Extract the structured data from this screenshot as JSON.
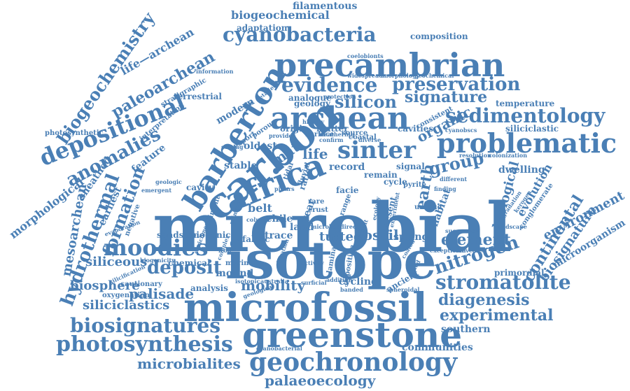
{
  "word_color": "#4a7fb5",
  "background": "#ffffff",
  "words": [
    {
      "text": "microbial"
    },
    {
      "text": "isotope"
    },
    {
      "text": "microfossil"
    },
    {
      "text": "greenstone"
    },
    {
      "text": "carbon"
    },
    {
      "text": "precambrian"
    },
    {
      "text": "archean"
    },
    {
      "text": "africa"
    },
    {
      "text": "barberton"
    },
    {
      "text": "problematic"
    },
    {
      "text": "sinter"
    },
    {
      "text": "geochronology"
    },
    {
      "text": "photosynthesis"
    },
    {
      "text": "biosignatures"
    },
    {
      "text": "depositional"
    },
    {
      "text": "cyanobacteria"
    },
    {
      "text": "moodies"
    },
    {
      "text": "stromatolite"
    },
    {
      "text": "hydrothermal"
    },
    {
      "text": "biogeochemistry"
    },
    {
      "text": "paleoarchean"
    },
    {
      "text": "anomalies"
    },
    {
      "text": "evidence"
    },
    {
      "text": "preservation"
    },
    {
      "text": "sedimentology"
    },
    {
      "text": "nitrogen"
    },
    {
      "text": "deposit"
    },
    {
      "text": "formation"
    },
    {
      "text": "mesoarchean"
    },
    {
      "text": "signature"
    },
    {
      "text": "silicon"
    },
    {
      "text": "microbialites"
    },
    {
      "text": "experimental"
    },
    {
      "text": "diagenesis"
    },
    {
      "text": "palaeoecology"
    },
    {
      "text": "element"
    },
    {
      "text": "group"
    },
    {
      "text": "earth"
    },
    {
      "text": "continental"
    },
    {
      "text": "biological"
    },
    {
      "text": "biosignature"
    },
    {
      "text": "environment"
    },
    {
      "text": "morphological"
    },
    {
      "text": "siliciclastics"
    },
    {
      "text": "siliceous"
    },
    {
      "text": "palisade"
    },
    {
      "text": "biosphere"
    },
    {
      "text": "mobility"
    },
    {
      "text": "fossil"
    },
    {
      "text": "tufted"
    },
    {
      "text": "life"
    },
    {
      "text": "mat"
    },
    {
      "text": "organic"
    },
    {
      "text": "evolution"
    },
    {
      "text": "communities"
    },
    {
      "text": "southern"
    },
    {
      "text": "life—archean"
    },
    {
      "text": "biogeochemical"
    },
    {
      "text": "filamentous"
    },
    {
      "text": "adaptation"
    },
    {
      "text": "composition"
    },
    {
      "text": "temperature"
    },
    {
      "text": "dwelling"
    },
    {
      "text": "sheathed"
    },
    {
      "text": "earliest"
    },
    {
      "text": "chemical"
    },
    {
      "text": "analysis"
    },
    {
      "text": "microorganism"
    },
    {
      "text": "siliciclastic"
    },
    {
      "text": "belt"
    },
    {
      "text": "trace"
    },
    {
      "text": "fabric"
    },
    {
      "text": "record"
    },
    {
      "text": "spring"
    },
    {
      "text": "habitat"
    },
    {
      "text": "modern"
    },
    {
      "text": "geology"
    },
    {
      "text": "feature"
    },
    {
      "text": "sandstone"
    },
    {
      "text": "biogenic"
    },
    {
      "text": "cautionary"
    },
    {
      "text": "oxygenation"
    },
    {
      "text": "mound"
    },
    {
      "text": "cycling"
    },
    {
      "text": "ancient"
    },
    {
      "text": "primordial"
    },
    {
      "text": "cavities"
    },
    {
      "text": "oldest"
    },
    {
      "text": "stable"
    },
    {
      "text": "origin"
    },
    {
      "text": "matter"
    },
    {
      "text": "coastal"
    },
    {
      "text": "remain"
    },
    {
      "text": "signal"
    },
    {
      "text": "cycle"
    },
    {
      "text": "pyrite"
    },
    {
      "text": "unique"
    },
    {
      "text": "present"
    },
    {
      "text": "surface"
    },
    {
      "text": "source"
    },
    {
      "text": "terrestrial"
    },
    {
      "text": "interpretation"
    },
    {
      "text": "photosynthetic"
    },
    {
      "text": "stratigraphic"
    },
    {
      "text": "information"
    },
    {
      "text": "coelobionts"
    },
    {
      "text": "widespread"
    },
    {
      "text": "morphology"
    },
    {
      "text": "geochemical"
    },
    {
      "text": "protection"
    },
    {
      "text": "analogue"
    },
    {
      "text": "detailed"
    },
    {
      "text": "consistent"
    },
    {
      "text": "cyanobscs"
    },
    {
      "text": "colonization"
    },
    {
      "text": "conglomerate"
    },
    {
      "text": "landscape"
    },
    {
      "text": "degradation"
    },
    {
      "text": "kerogen"
    },
    {
      "text": "different"
    },
    {
      "text": "finding"
    },
    {
      "text": "succession"
    },
    {
      "text": "exceptional"
    },
    {
      "text": "revealed"
    },
    {
      "text": "spheroidal"
    },
    {
      "text": "banded"
    },
    {
      "text": "cyanobacterial"
    },
    {
      "text": "australia"
    },
    {
      "text": "isotopic"
    },
    {
      "text": "marine"
    },
    {
      "text": "enrichment"
    },
    {
      "text": "sediment"
    },
    {
      "text": "biogenicity"
    },
    {
      "text": "silicification"
    },
    {
      "text": "negative"
    },
    {
      "text": "evaporation"
    },
    {
      "text": "emergent"
    },
    {
      "text": "cavity"
    },
    {
      "text": "geologic"
    },
    {
      "text": "primary"
    },
    {
      "text": "chile"
    },
    {
      "text": "land"
    },
    {
      "text": "year"
    },
    {
      "text": "crust"
    },
    {
      "text": "rare"
    },
    {
      "text": "column"
    },
    {
      "text": "tidal"
    },
    {
      "text": "fluvial"
    },
    {
      "text": "ratio"
    },
    {
      "text": "facie"
    },
    {
      "text": "range"
    },
    {
      "text": "laminated"
    },
    {
      "text": "deposition"
    },
    {
      "text": "setting"
    },
    {
      "text": "export"
    },
    {
      "text": "porous"
    },
    {
      "text": "provide"
    },
    {
      "text": "confirm"
    },
    {
      "text": "resolution"
    },
    {
      "text": "history"
    },
    {
      "text": "weathering"
    },
    {
      "text": "diverse"
    },
    {
      "text": "pillars"
    },
    {
      "text": "duration"
    },
    {
      "text": "activity"
    },
    {
      "text": "addition"
    },
    {
      "text": "surficial"
    },
    {
      "text": "experiment"
    },
    {
      "text": "biosediment"
    },
    {
      "text": "geological"
    },
    {
      "text": "complex"
    },
    {
      "text": "ecology"
    },
    {
      "text": "direct"
    },
    {
      "text": "microbes"
    },
    {
      "text": "coated"
    },
    {
      "text": "mixed"
    },
    {
      "text": "iron"
    }
  ]
}
